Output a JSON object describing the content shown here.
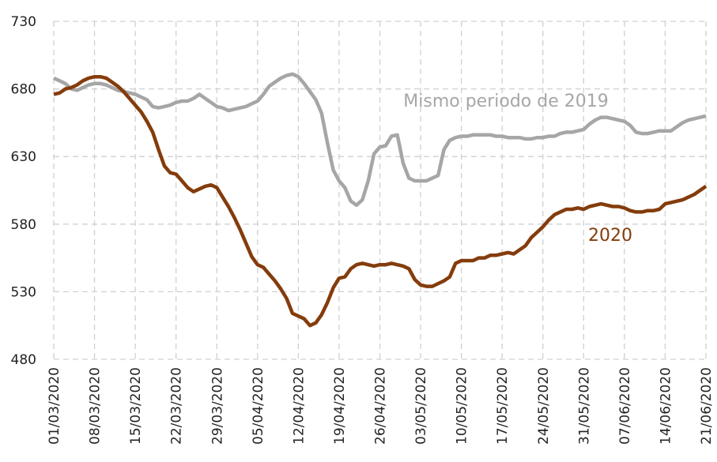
{
  "chart_data": {
    "type": "line",
    "categories": [
      "01/03/2020",
      null,
      null,
      null,
      null,
      null,
      null,
      "08/03/2020",
      null,
      null,
      null,
      null,
      null,
      null,
      "15/03/2020",
      null,
      null,
      null,
      null,
      null,
      null,
      "22/03/2020",
      null,
      null,
      null,
      null,
      null,
      null,
      "29/03/2020",
      null,
      null,
      null,
      null,
      null,
      null,
      "05/04/2020",
      null,
      null,
      null,
      null,
      null,
      null,
      "12/04/2020",
      null,
      null,
      null,
      null,
      null,
      null,
      "19/04/2020",
      null,
      null,
      null,
      null,
      null,
      null,
      "26/04/2020",
      null,
      null,
      null,
      null,
      null,
      null,
      "03/05/2020",
      null,
      null,
      null,
      null,
      null,
      null,
      "10/05/2020",
      null,
      null,
      null,
      null,
      null,
      null,
      "17/05/2020",
      null,
      null,
      null,
      null,
      null,
      null,
      "24/05/2020",
      null,
      null,
      null,
      null,
      null,
      null,
      "31/05/2020",
      null,
      null,
      null,
      null,
      null,
      null,
      "07/06/2020",
      null,
      null,
      null,
      null,
      null,
      null,
      "14/06/2020",
      null,
      null,
      null,
      null,
      null,
      null,
      "21/06/2020"
    ],
    "series": [
      {
        "name": "Mismo periodo de 2019",
        "color": "#a6a6a6",
        "values": [
          688,
          686,
          684,
          680,
          679,
          681,
          683,
          684,
          684,
          683,
          681,
          679,
          678,
          677,
          676,
          674,
          672,
          667,
          666,
          667,
          668,
          670,
          671,
          671,
          673,
          676,
          673,
          670,
          667,
          666,
          664,
          665,
          666,
          667,
          669,
          671,
          676,
          682,
          685,
          688,
          690,
          691,
          689,
          684,
          678,
          672,
          662,
          640,
          620,
          612,
          607,
          597,
          594,
          598,
          612,
          632,
          637,
          638,
          645,
          646,
          625,
          614,
          612,
          612,
          612,
          614,
          616,
          635,
          642,
          644,
          645,
          645,
          646,
          646,
          646,
          646,
          645,
          645,
          644,
          644,
          644,
          643,
          643,
          644,
          644,
          645,
          645,
          647,
          648,
          648,
          649,
          650,
          654,
          657,
          659,
          659,
          658,
          657,
          656,
          653,
          648,
          647,
          647,
          648,
          649,
          649,
          649,
          652,
          655,
          657,
          658,
          659,
          660
        ]
      },
      {
        "name": "2020",
        "color": "#843c0c",
        "values": [
          676,
          677,
          680,
          681,
          683,
          686,
          688,
          689,
          689,
          688,
          685,
          682,
          678,
          673,
          668,
          663,
          656,
          648,
          635,
          623,
          618,
          617,
          612,
          607,
          604,
          606,
          608,
          609,
          607,
          600,
          593,
          585,
          576,
          566,
          556,
          550,
          548,
          543,
          538,
          532,
          525,
          514,
          512,
          510,
          505,
          507,
          513,
          522,
          533,
          540,
          541,
          547,
          550,
          551,
          550,
          549,
          550,
          550,
          551,
          550,
          549,
          547,
          539,
          535,
          534,
          534,
          536,
          538,
          541,
          551,
          553,
          553,
          553,
          555,
          555,
          557,
          557,
          558,
          559,
          558,
          561,
          564,
          570,
          574,
          578,
          583,
          587,
          589,
          591,
          591,
          592,
          591,
          593,
          594,
          595,
          594,
          593,
          593,
          592,
          590,
          589,
          589,
          590,
          590,
          591,
          595,
          596,
          597,
          598,
          600,
          602,
          605,
          608
        ]
      }
    ],
    "ylim": [
      480,
      730
    ],
    "yticks": [
      480,
      530,
      580,
      630,
      680,
      730
    ],
    "grid": true
  }
}
